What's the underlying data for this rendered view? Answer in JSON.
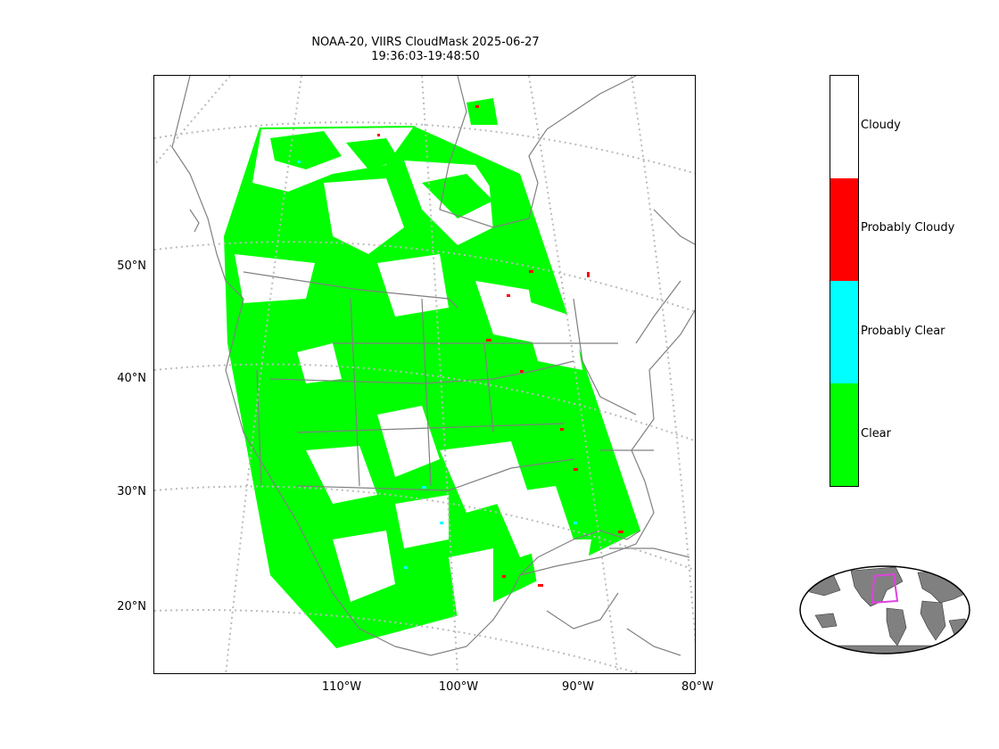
{
  "title": {
    "line1": "NOAA-20, VIIRS CloudMask 2025-06-27",
    "line2": "19:36:03-19:48:50"
  },
  "map": {
    "latitude_labels": [
      "50°N",
      "40°N",
      "30°N",
      "20°N"
    ],
    "longitude_labels": [
      "110°W",
      "100°W",
      "90°W",
      "80°W"
    ],
    "colors": {
      "clear": "#00ff00",
      "probably_clear": "#00ffff",
      "probably_cloudy": "#ff0000",
      "cloudy": "#ffffff",
      "coast": "#808080",
      "grid": "#bbbbbb"
    }
  },
  "colorbar": {
    "categories": [
      {
        "label": "Cloudy",
        "color": "#ffffff"
      },
      {
        "label": "Probably Cloudy",
        "color": "#ff0000"
      },
      {
        "label": "Probably Clear",
        "color": "#00ffff"
      },
      {
        "label": "Clear",
        "color": "#00ff00"
      }
    ]
  },
  "locator": {
    "land_color": "#808080",
    "box_color": "#e040e0"
  }
}
